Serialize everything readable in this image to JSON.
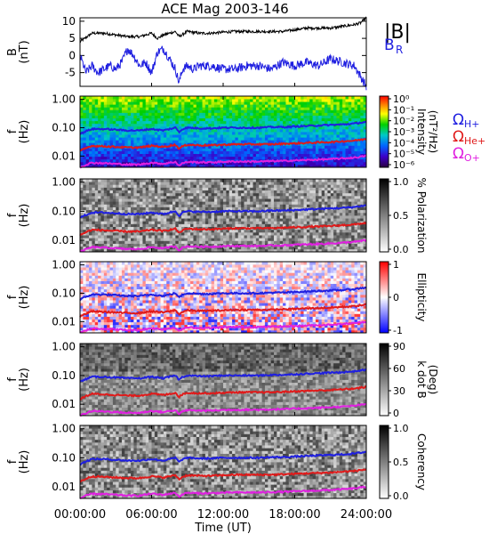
{
  "title": "ACE Mag 2003-146",
  "xlabel": "Time (UT)",
  "xticks": [
    "00:00:00",
    "06:00:00",
    "12:00:00",
    "18:00:00",
    "24:00:00"
  ],
  "chart_data": [
    {
      "type": "line",
      "panel": "magnetic-field",
      "ylabel_lines": [
        "B",
        "(nT)"
      ],
      "ylim": [
        -9,
        11
      ],
      "yticks": [
        "10",
        "5",
        "0",
        "-5"
      ],
      "x_unit": "hours UT",
      "series": [
        {
          "name": "|B|",
          "color": "#000000",
          "x": [
            0,
            1,
            2,
            3,
            4,
            5,
            6,
            6.5,
            7,
            7.5,
            8,
            8.3,
            9,
            10,
            11,
            12,
            13,
            14,
            15,
            16,
            17,
            18,
            19,
            20,
            21,
            22,
            23,
            23.5,
            24
          ],
          "y": [
            4,
            6.5,
            6.5,
            6,
            5.5,
            5.5,
            6.5,
            5,
            6,
            6.5,
            7,
            5.5,
            7,
            6.5,
            6.5,
            6.8,
            7,
            7,
            7,
            7,
            7,
            7.5,
            8,
            8,
            8,
            8.5,
            9,
            9.5,
            11
          ]
        },
        {
          "name": "B",
          "subscript": "R",
          "color": "#1f1fe0",
          "x": [
            0,
            0.5,
            1,
            1.5,
            2,
            2.5,
            3,
            3.5,
            4,
            4.5,
            5,
            5.5,
            6,
            6.5,
            7,
            7.5,
            8,
            8.3,
            8.6,
            9,
            9.5,
            10,
            11,
            12,
            13,
            14,
            15,
            16,
            17,
            18,
            19,
            20,
            21,
            22,
            23,
            23.5,
            24
          ],
          "y": [
            0,
            -5,
            -3,
            -5,
            -4,
            -3,
            -4,
            -2,
            2,
            0,
            -3,
            -2,
            -5,
            1,
            2,
            -1,
            -4,
            -8,
            -4,
            -3,
            -4,
            -3,
            -3,
            -4,
            -4,
            -3,
            -3,
            -4,
            -2,
            -3,
            -2,
            -3,
            -1,
            -2,
            -3,
            -6,
            -9
          ]
        }
      ]
    },
    {
      "type": "heatmap",
      "panel": "intensity",
      "ylabel_lines": [
        "f",
        "(Hz)"
      ],
      "yscale": "log",
      "ylim": [
        0.004,
        1.3
      ],
      "yticks": [
        "1.00",
        "0.10",
        "0.01"
      ],
      "colorbar": {
        "label_lines": [
          "Intensity",
          "(nT²/Hz)"
        ],
        "ticks": [
          "10⁰",
          "10⁻¹",
          "10⁻²",
          "10⁻³",
          "10⁻⁴",
          "10⁻⁵",
          "10⁻⁶"
        ],
        "palette": "rainbow"
      },
      "overlay_legend": [
        {
          "name": "Ω",
          "subscript": "H+",
          "color": "#1f1fe0"
        },
        {
          "name": "Ω",
          "subscript": "He+",
          "color": "#e01a1a"
        },
        {
          "name": "Ω",
          "subscript": "O+",
          "color": "#e020e0"
        }
      ]
    },
    {
      "type": "heatmap",
      "panel": "polarization",
      "ylabel_lines": [
        "f",
        "(Hz)"
      ],
      "yscale": "log",
      "ylim": [
        0.004,
        1.3
      ],
      "yticks": [
        "1.00",
        "0.10",
        "0.01"
      ],
      "colorbar": {
        "label_lines": [
          "% Polarization"
        ],
        "ticks": [
          "1.0",
          "0.5",
          "0.0"
        ],
        "palette": "gray"
      }
    },
    {
      "type": "heatmap",
      "panel": "ellipticity",
      "ylabel_lines": [
        "f",
        "(Hz)"
      ],
      "yscale": "log",
      "ylim": [
        0.004,
        1.3
      ],
      "yticks": [
        "1.00",
        "0.10",
        "0.01"
      ],
      "colorbar": {
        "label_lines": [
          "Ellipticity"
        ],
        "ticks": [
          "1",
          "0",
          "-1"
        ],
        "palette": "bluewhitered"
      }
    },
    {
      "type": "heatmap",
      "panel": "k-dot-b",
      "ylabel_lines": [
        "f",
        "(Hz)"
      ],
      "yscale": "log",
      "ylim": [
        0.004,
        1.3
      ],
      "yticks": [
        "1.00",
        "0.10",
        "0.01"
      ],
      "colorbar": {
        "label_lines": [
          "k dot B",
          "(Deg)"
        ],
        "ticks": [
          "90",
          "60",
          "30",
          "0"
        ],
        "palette": "gray"
      }
    },
    {
      "type": "heatmap",
      "panel": "coherency",
      "ylabel_lines": [
        "f",
        "(Hz)"
      ],
      "yscale": "log",
      "ylim": [
        0.004,
        1.3
      ],
      "yticks": [
        "1.00",
        "0.10",
        "0.01"
      ],
      "colorbar": {
        "label_lines": [
          "Coherency"
        ],
        "ticks": [
          "1.0",
          "0.5",
          "0.0"
        ],
        "palette": "gray"
      }
    }
  ],
  "gyrofrequency_overlays": {
    "x_unit": "hours UT",
    "x": [
      0,
      1,
      2,
      3,
      4,
      5,
      6,
      7,
      7.5,
      8,
      8.3,
      8.6,
      9,
      10,
      11,
      12,
      13,
      14,
      15,
      16,
      17,
      18,
      19,
      20,
      21,
      22,
      23,
      24
    ],
    "H+": [
      0.06,
      0.09,
      0.09,
      0.085,
      0.08,
      0.08,
      0.09,
      0.08,
      0.09,
      0.1,
      0.07,
      0.09,
      0.1,
      0.095,
      0.095,
      0.1,
      0.1,
      0.1,
      0.1,
      0.105,
      0.105,
      0.11,
      0.115,
      0.12,
      0.125,
      0.13,
      0.14,
      0.16
    ],
    "He+": [
      0.015,
      0.023,
      0.022,
      0.021,
      0.02,
      0.02,
      0.023,
      0.021,
      0.023,
      0.025,
      0.018,
      0.022,
      0.025,
      0.024,
      0.024,
      0.025,
      0.026,
      0.026,
      0.026,
      0.026,
      0.027,
      0.028,
      0.029,
      0.03,
      0.031,
      0.033,
      0.035,
      0.04
    ],
    "O+": [
      0.004,
      0.0058,
      0.0056,
      0.0053,
      0.005,
      0.005,
      0.0058,
      0.0053,
      0.0058,
      0.0062,
      0.0045,
      0.0056,
      0.0062,
      0.006,
      0.006,
      0.0063,
      0.0064,
      0.0064,
      0.0064,
      0.0066,
      0.0067,
      0.007,
      0.0072,
      0.0075,
      0.0078,
      0.0082,
      0.0088,
      0.01
    ]
  }
}
